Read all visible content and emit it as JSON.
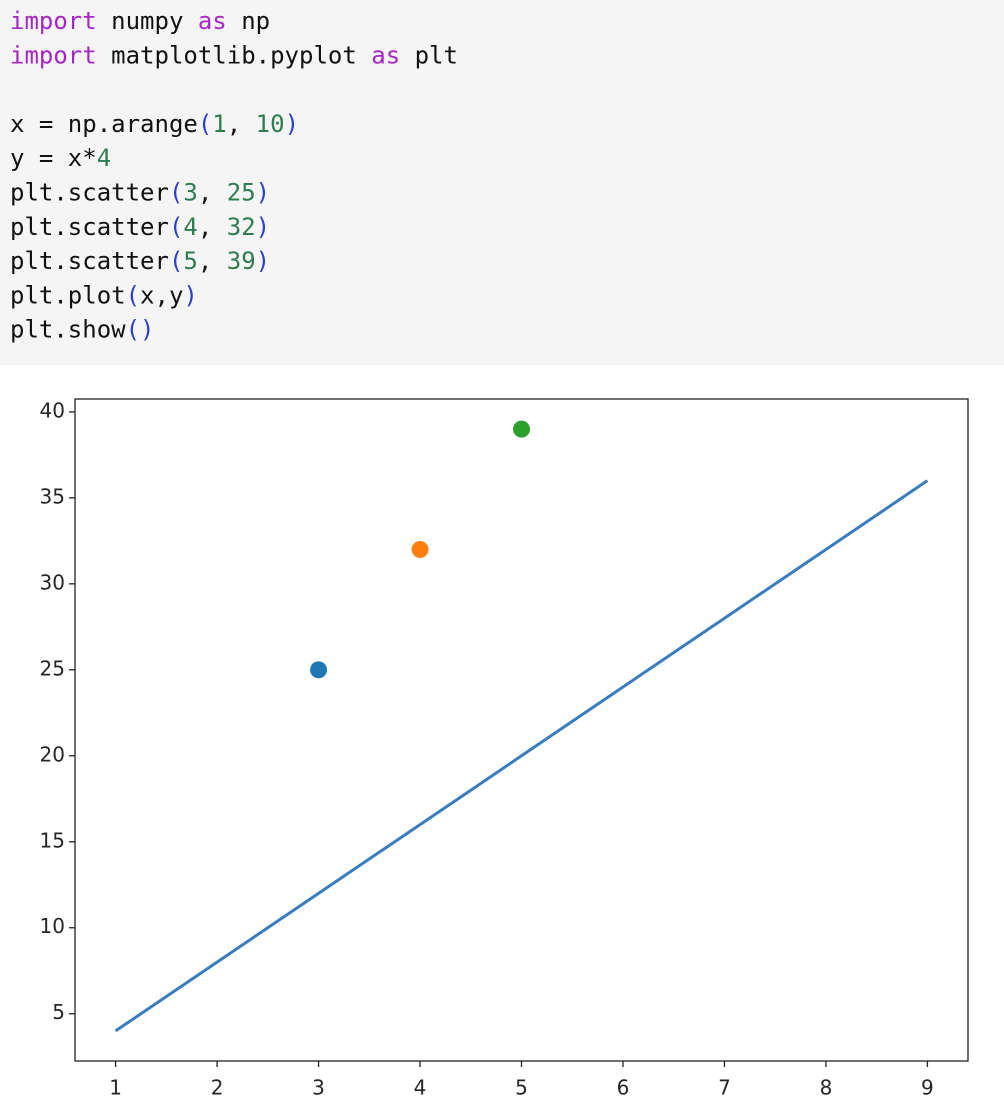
{
  "code": {
    "lines": [
      [
        {
          "text": "import",
          "color": "#a626c4"
        },
        {
          "text": " numpy ",
          "color": "#111111"
        },
        {
          "text": "as",
          "color": "#a626c4"
        },
        {
          "text": " np",
          "color": "#111111"
        }
      ],
      [
        {
          "text": "import",
          "color": "#a626c4"
        },
        {
          "text": " matplotlib.pyplot ",
          "color": "#111111"
        },
        {
          "text": "as",
          "color": "#a626c4"
        },
        {
          "text": " plt",
          "color": "#111111"
        }
      ],
      [],
      [
        {
          "text": "x = np.arange",
          "color": "#111111"
        },
        {
          "text": "(",
          "color": "#2b3fcf"
        },
        {
          "text": "1",
          "color": "#2e7d4f"
        },
        {
          "text": ", ",
          "color": "#111111"
        },
        {
          "text": "10",
          "color": "#2e7d4f"
        },
        {
          "text": ")",
          "color": "#2b3fcf"
        }
      ],
      [
        {
          "text": "y = x*",
          "color": "#111111"
        },
        {
          "text": "4",
          "color": "#2e7d4f"
        }
      ],
      [
        {
          "text": "plt.scatter",
          "color": "#111111"
        },
        {
          "text": "(",
          "color": "#2b3fcf"
        },
        {
          "text": "3",
          "color": "#2e7d4f"
        },
        {
          "text": ", ",
          "color": "#111111"
        },
        {
          "text": "25",
          "color": "#2e7d4f"
        },
        {
          "text": ")",
          "color": "#2b3fcf"
        }
      ],
      [
        {
          "text": "plt.scatter",
          "color": "#111111"
        },
        {
          "text": "(",
          "color": "#2b3fcf"
        },
        {
          "text": "4",
          "color": "#2e7d4f"
        },
        {
          "text": ", ",
          "color": "#111111"
        },
        {
          "text": "32",
          "color": "#2e7d4f"
        },
        {
          "text": ")",
          "color": "#2b3fcf"
        }
      ],
      [
        {
          "text": "plt.scatter",
          "color": "#111111"
        },
        {
          "text": "(",
          "color": "#2b3fcf"
        },
        {
          "text": "5",
          "color": "#2e7d4f"
        },
        {
          "text": ", ",
          "color": "#111111"
        },
        {
          "text": "39",
          "color": "#2e7d4f"
        },
        {
          "text": ")",
          "color": "#2b3fcf"
        }
      ],
      [
        {
          "text": "plt.plot",
          "color": "#111111"
        },
        {
          "text": "(",
          "color": "#2b3fcf"
        },
        {
          "text": "x,y",
          "color": "#111111"
        },
        {
          "text": ")",
          "color": "#2b3fcf"
        }
      ],
      [
        {
          "text": "plt.show",
          "color": "#111111"
        },
        {
          "text": "()",
          "color": "#2b3fcf"
        }
      ]
    ]
  },
  "chart_data": {
    "type": "line",
    "series": [
      {
        "type": "line",
        "color": "#3a7dbc",
        "x": [
          1,
          2,
          3,
          4,
          5,
          6,
          7,
          8,
          9
        ],
        "values": [
          4,
          8,
          12,
          16,
          20,
          24,
          28,
          32,
          36
        ]
      },
      {
        "type": "scatter",
        "color": "#1f77b4",
        "x": [
          3
        ],
        "values": [
          25
        ]
      },
      {
        "type": "scatter",
        "color": "#ff7f0e",
        "x": [
          4
        ],
        "values": [
          32
        ]
      },
      {
        "type": "scatter",
        "color": "#2ca02c",
        "x": [
          5
        ],
        "values": [
          39
        ]
      }
    ],
    "xlim": [
      0.6,
      9.4
    ],
    "xticks": [
      1,
      2,
      3,
      4,
      5,
      6,
      7,
      8,
      9
    ],
    "ylim": [
      2.25,
      40.75
    ],
    "yticks": [
      5,
      10,
      15,
      20,
      25,
      30,
      35,
      40
    ],
    "grid": false
  }
}
